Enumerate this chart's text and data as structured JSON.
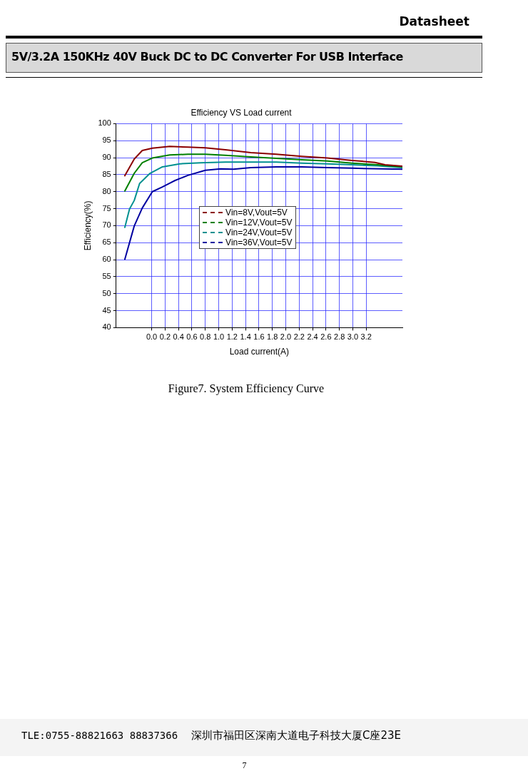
{
  "chart_data": {
    "type": "line",
    "title": "Efficiency VS Load current",
    "xlabel": "Load current(A)",
    "ylabel": "Efficiency(%)",
    "xlim": [
      -0.53,
      3.74
    ],
    "xticks": [
      {
        "value": 0,
        "label": "0.0"
      },
      0.2,
      0.4,
      0.6,
      0.8,
      {
        "value": 1,
        "label": "1.0"
      },
      1.2,
      1.4,
      1.6,
      1.8,
      {
        "value": 2,
        "label": "2.0"
      },
      2.2,
      2.4,
      2.6,
      2.8,
      {
        "value": 3,
        "label": "3.0"
      },
      3.2
    ],
    "ylim": [
      40,
      100
    ],
    "yticks": [
      40,
      45,
      50,
      55,
      60,
      65,
      70,
      75,
      80,
      85,
      90,
      95,
      100
    ],
    "grid": true,
    "legend": "center",
    "line_style": "solid",
    "marker": "none",
    "series": [
      {
        "name": "Vin=8V,Vout=5V",
        "color": "#8b0000",
        "x": [
          -0.4,
          -0.26,
          -0.14,
          0.01,
          0.27,
          0.54,
          0.8,
          1.1,
          1.48,
          1.86,
          2.24,
          2.62,
          2.99,
          3.33,
          3.48,
          3.74
        ],
        "values": [
          84.7,
          89.6,
          92.1,
          92.8,
          93.3,
          93.1,
          92.9,
          92.3,
          91.5,
          91.0,
          90.4,
          89.9,
          89.2,
          88.6,
          87.9,
          87.5
        ]
      },
      {
        "name": "Vin=12V,Vout=5V",
        "color": "#008000",
        "x": [
          -0.4,
          -0.26,
          -0.14,
          0.01,
          0.27,
          0.54,
          0.8,
          1.1,
          1.48,
          1.86,
          2.24,
          2.62,
          2.99,
          3.37,
          3.74
        ],
        "values": [
          80.2,
          85.4,
          88.5,
          89.9,
          90.8,
          91.0,
          91.0,
          90.7,
          90.2,
          89.8,
          89.4,
          89.0,
          88.4,
          87.9,
          87.3
        ]
      },
      {
        "name": "Vin=24V,Vout=5V",
        "color": "#009090",
        "x": [
          -0.4,
          -0.33,
          -0.26,
          -0.18,
          -0.03,
          0.16,
          0.42,
          0.73,
          1.1,
          1.86,
          2.24,
          2.62,
          2.99,
          3.37,
          3.74
        ],
        "values": [
          69.5,
          74.9,
          77.4,
          82.4,
          85.3,
          87.3,
          88.2,
          88.5,
          88.7,
          88.7,
          88.4,
          88.2,
          87.9,
          87.6,
          87.1
        ]
      },
      {
        "name": "Vin=36V,Vout=5V",
        "color": "#0000a0",
        "x": [
          -0.4,
          -0.26,
          -0.14,
          0.01,
          0.16,
          0.35,
          0.54,
          0.8,
          1.03,
          1.22,
          1.48,
          1.86,
          2.24,
          2.62,
          2.99,
          3.74
        ],
        "values": [
          60.1,
          69.9,
          75.2,
          80.0,
          81.4,
          83.3,
          84.8,
          86.3,
          86.7,
          86.6,
          87.1,
          87.3,
          87.3,
          87.1,
          86.9,
          86.6
        ]
      }
    ],
    "annotations": [
      "Datasheet",
      "5V/3.2A 150KHz 40V Buck DC to DC Converter For USB Interface",
      "Figure7. System Efficiency Curve",
      "TLE:0755-88821663  88837366",
      "深圳市福田区深南大道电子科技大厦C座23E",
      "7"
    ]
  }
}
